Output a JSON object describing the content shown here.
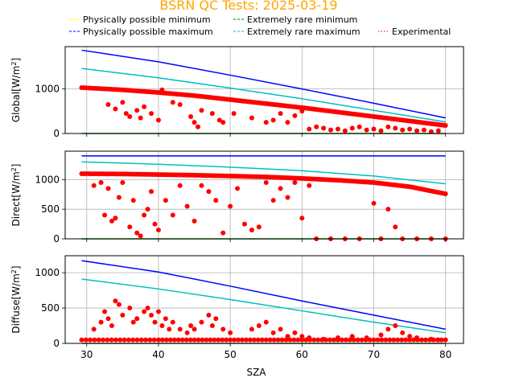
{
  "title": "BSRN QC Tests: 2025-03-19",
  "legend": [
    {
      "label": "Physically possible minimum",
      "color": "#ffff00",
      "style": "dashed"
    },
    {
      "label": "Physically possible maximum",
      "color": "#0000ff",
      "style": "dashed"
    },
    {
      "label": "Extremely rare minimum",
      "color": "#008000",
      "style": "dashed"
    },
    {
      "label": "Extremely rare maximum",
      "color": "#00bfbf",
      "style": "dashed"
    },
    {
      "label": "Experimental",
      "color": "#ff0000",
      "style": "dotted"
    }
  ],
  "chart_data": [
    {
      "type": "scatter",
      "ylabel_main": "Global[W/m",
      "ylabel_sup": "2",
      "ylabel_end": "]",
      "xlim": [
        27,
        82.5
      ],
      "ylim": [
        0,
        1950
      ],
      "yticks": [
        0,
        1000
      ],
      "xticks": [
        30,
        40,
        50,
        60,
        70,
        80
      ],
      "grid": true,
      "lines": [
        {
          "name": "Physically possible maximum",
          "color": "#0000ff",
          "x": [
            29.3,
            40,
            50,
            60,
            70,
            80
          ],
          "y": [
            1870,
            1610,
            1310,
            1000,
            680,
            350
          ]
        },
        {
          "name": "Extremely rare maximum",
          "color": "#00bfbf",
          "x": [
            29.3,
            40,
            50,
            60,
            70,
            80
          ],
          "y": [
            1460,
            1250,
            1020,
            780,
            520,
            260
          ]
        },
        {
          "name": "Extremely rare minimum",
          "color": "#008000",
          "x": [
            29.3,
            80
          ],
          "y": [
            0,
            0
          ]
        }
      ],
      "experimental_trend": {
        "x": [
          29.3,
          35,
          40,
          45,
          50,
          55,
          60,
          65,
          70,
          75,
          80
        ],
        "y": [
          1030,
          980,
          920,
          850,
          760,
          670,
          580,
          480,
          380,
          280,
          180
        ]
      },
      "experimental_scatter": [
        [
          33,
          650
        ],
        [
          34,
          550
        ],
        [
          35,
          700
        ],
        [
          35.5,
          450
        ],
        [
          36,
          380
        ],
        [
          37,
          520
        ],
        [
          37.5,
          350
        ],
        [
          38,
          600
        ],
        [
          39,
          450
        ],
        [
          40,
          300
        ],
        [
          40.5,
          980
        ],
        [
          42,
          700
        ],
        [
          43,
          650
        ],
        [
          44.5,
          380
        ],
        [
          45,
          250
        ],
        [
          45.5,
          150
        ],
        [
          46,
          520
        ],
        [
          47.5,
          450
        ],
        [
          48.5,
          300
        ],
        [
          49,
          250
        ],
        [
          50.5,
          450
        ],
        [
          53,
          350
        ],
        [
          55,
          250
        ],
        [
          56,
          300
        ],
        [
          57,
          450
        ],
        [
          58,
          250
        ],
        [
          59,
          400
        ],
        [
          60,
          500
        ],
        [
          61,
          100
        ],
        [
          62,
          150
        ],
        [
          63,
          120
        ],
        [
          64,
          80
        ],
        [
          65,
          100
        ],
        [
          66,
          60
        ],
        [
          67,
          120
        ],
        [
          68,
          150
        ],
        [
          69,
          80
        ],
        [
          70,
          100
        ],
        [
          71,
          60
        ],
        [
          72,
          150
        ],
        [
          73,
          120
        ],
        [
          74,
          80
        ],
        [
          75,
          100
        ],
        [
          76,
          60
        ],
        [
          77,
          80
        ],
        [
          78,
          40
        ],
        [
          79,
          60
        ]
      ]
    },
    {
      "type": "scatter",
      "ylabel_main": "Direct[W/m",
      "ylabel_sup": "2",
      "ylabel_end": "]",
      "xlim": [
        27,
        82.5
      ],
      "ylim": [
        0,
        1480
      ],
      "yticks": [
        0,
        500,
        1000
      ],
      "xticks": [
        30,
        40,
        50,
        60,
        70,
        80
      ],
      "grid": true,
      "lines": [
        {
          "name": "Physically possible maximum",
          "color": "#0000ff",
          "x": [
            29.3,
            80
          ],
          "y": [
            1400,
            1400
          ]
        },
        {
          "name": "Extremely rare maximum",
          "color": "#00bfbf",
          "x": [
            29.3,
            40,
            50,
            60,
            70,
            80
          ],
          "y": [
            1300,
            1260,
            1210,
            1150,
            1060,
            930
          ]
        },
        {
          "name": "Extremely rare minimum",
          "color": "#008000",
          "x": [
            29.3,
            80
          ],
          "y": [
            0,
            0
          ]
        }
      ],
      "experimental_trend": {
        "x": [
          29.3,
          35,
          40,
          45,
          50,
          55,
          60,
          65,
          70,
          75,
          80
        ],
        "y": [
          1100,
          1095,
          1085,
          1075,
          1060,
          1045,
          1020,
          990,
          950,
          880,
          760
        ]
      },
      "experimental_scatter": [
        [
          31,
          900
        ],
        [
          32,
          950
        ],
        [
          32.5,
          400
        ],
        [
          33,
          850
        ],
        [
          33.5,
          300
        ],
        [
          34,
          350
        ],
        [
          34.5,
          700
        ],
        [
          35,
          950
        ],
        [
          36,
          200
        ],
        [
          36.5,
          650
        ],
        [
          37,
          100
        ],
        [
          37.5,
          50
        ],
        [
          38,
          400
        ],
        [
          38.5,
          500
        ],
        [
          39,
          800
        ],
        [
          39.5,
          250
        ],
        [
          40,
          150
        ],
        [
          41,
          650
        ],
        [
          42,
          400
        ],
        [
          43,
          900
        ],
        [
          44,
          550
        ],
        [
          45,
          300
        ],
        [
          46,
          900
        ],
        [
          47,
          800
        ],
        [
          48,
          650
        ],
        [
          49,
          100
        ],
        [
          50,
          550
        ],
        [
          51,
          850
        ],
        [
          52,
          250
        ],
        [
          53,
          150
        ],
        [
          54,
          200
        ],
        [
          55,
          950
        ],
        [
          56,
          650
        ],
        [
          57,
          850
        ],
        [
          58,
          700
        ],
        [
          59,
          950
        ],
        [
          60,
          350
        ],
        [
          61,
          900
        ],
        [
          62,
          0
        ],
        [
          64,
          0
        ],
        [
          66,
          0
        ],
        [
          68,
          0
        ],
        [
          70,
          600
        ],
        [
          71,
          0
        ],
        [
          72,
          500
        ],
        [
          73,
          200
        ],
        [
          74,
          0
        ],
        [
          76,
          0
        ],
        [
          78,
          0
        ],
        [
          80,
          0
        ]
      ]
    },
    {
      "type": "scatter",
      "ylabel_main": "Diffuse[W/m",
      "ylabel_sup": "2",
      "ylabel_end": "]",
      "xlabel": "SZA",
      "xlim": [
        27,
        82.5
      ],
      "ylim": [
        0,
        1240
      ],
      "yticks": [
        0,
        500,
        1000
      ],
      "xticks": [
        30,
        40,
        50,
        60,
        70,
        80
      ],
      "xticklabels": [
        "30",
        "40",
        "50",
        "60",
        "70",
        "80"
      ],
      "grid": true,
      "lines": [
        {
          "name": "Physically possible maximum",
          "color": "#0000ff",
          "x": [
            29.3,
            40,
            50,
            60,
            70,
            80
          ],
          "y": [
            1170,
            1010,
            810,
            600,
            400,
            200
          ]
        },
        {
          "name": "Extremely rare maximum",
          "color": "#00bfbf",
          "x": [
            29.3,
            40,
            50,
            60,
            70,
            80
          ],
          "y": [
            910,
            770,
            620,
            460,
            300,
            150
          ]
        },
        {
          "name": "Extremely rare minimum",
          "color": "#008000",
          "x": [
            29.3,
            80
          ],
          "y": [
            0,
            0
          ]
        }
      ],
      "experimental_trend": {
        "x": [
          29.3,
          40,
          50,
          60,
          70,
          80
        ],
        "y": [
          50,
          50,
          50,
          50,
          50,
          50
        ]
      },
      "experimental_scatter": [
        [
          31,
          200
        ],
        [
          32,
          300
        ],
        [
          32.5,
          450
        ],
        [
          33,
          350
        ],
        [
          33.5,
          250
        ],
        [
          34,
          600
        ],
        [
          34.5,
          550
        ],
        [
          35,
          400
        ],
        [
          36,
          500
        ],
        [
          36.5,
          300
        ],
        [
          37,
          350
        ],
        [
          38,
          450
        ],
        [
          38.5,
          500
        ],
        [
          39,
          400
        ],
        [
          39.5,
          300
        ],
        [
          40,
          450
        ],
        [
          40.5,
          250
        ],
        [
          41,
          350
        ],
        [
          41.5,
          200
        ],
        [
          42,
          300
        ],
        [
          43,
          200
        ],
        [
          44,
          150
        ],
        [
          44.5,
          250
        ],
        [
          45,
          200
        ],
        [
          46,
          300
        ],
        [
          47,
          400
        ],
        [
          47.5,
          250
        ],
        [
          48,
          350
        ],
        [
          49,
          200
        ],
        [
          50,
          150
        ],
        [
          53,
          200
        ],
        [
          54,
          250
        ],
        [
          55,
          300
        ],
        [
          56,
          150
        ],
        [
          57,
          200
        ],
        [
          58,
          100
        ],
        [
          59,
          150
        ],
        [
          60,
          100
        ],
        [
          61,
          80
        ],
        [
          63,
          60
        ],
        [
          65,
          80
        ],
        [
          67,
          100
        ],
        [
          69,
          80
        ],
        [
          71,
          120
        ],
        [
          72,
          200
        ],
        [
          73,
          250
        ],
        [
          74,
          150
        ],
        [
          75,
          100
        ],
        [
          76,
          80
        ],
        [
          78,
          60
        ],
        [
          79,
          50
        ]
      ]
    }
  ]
}
